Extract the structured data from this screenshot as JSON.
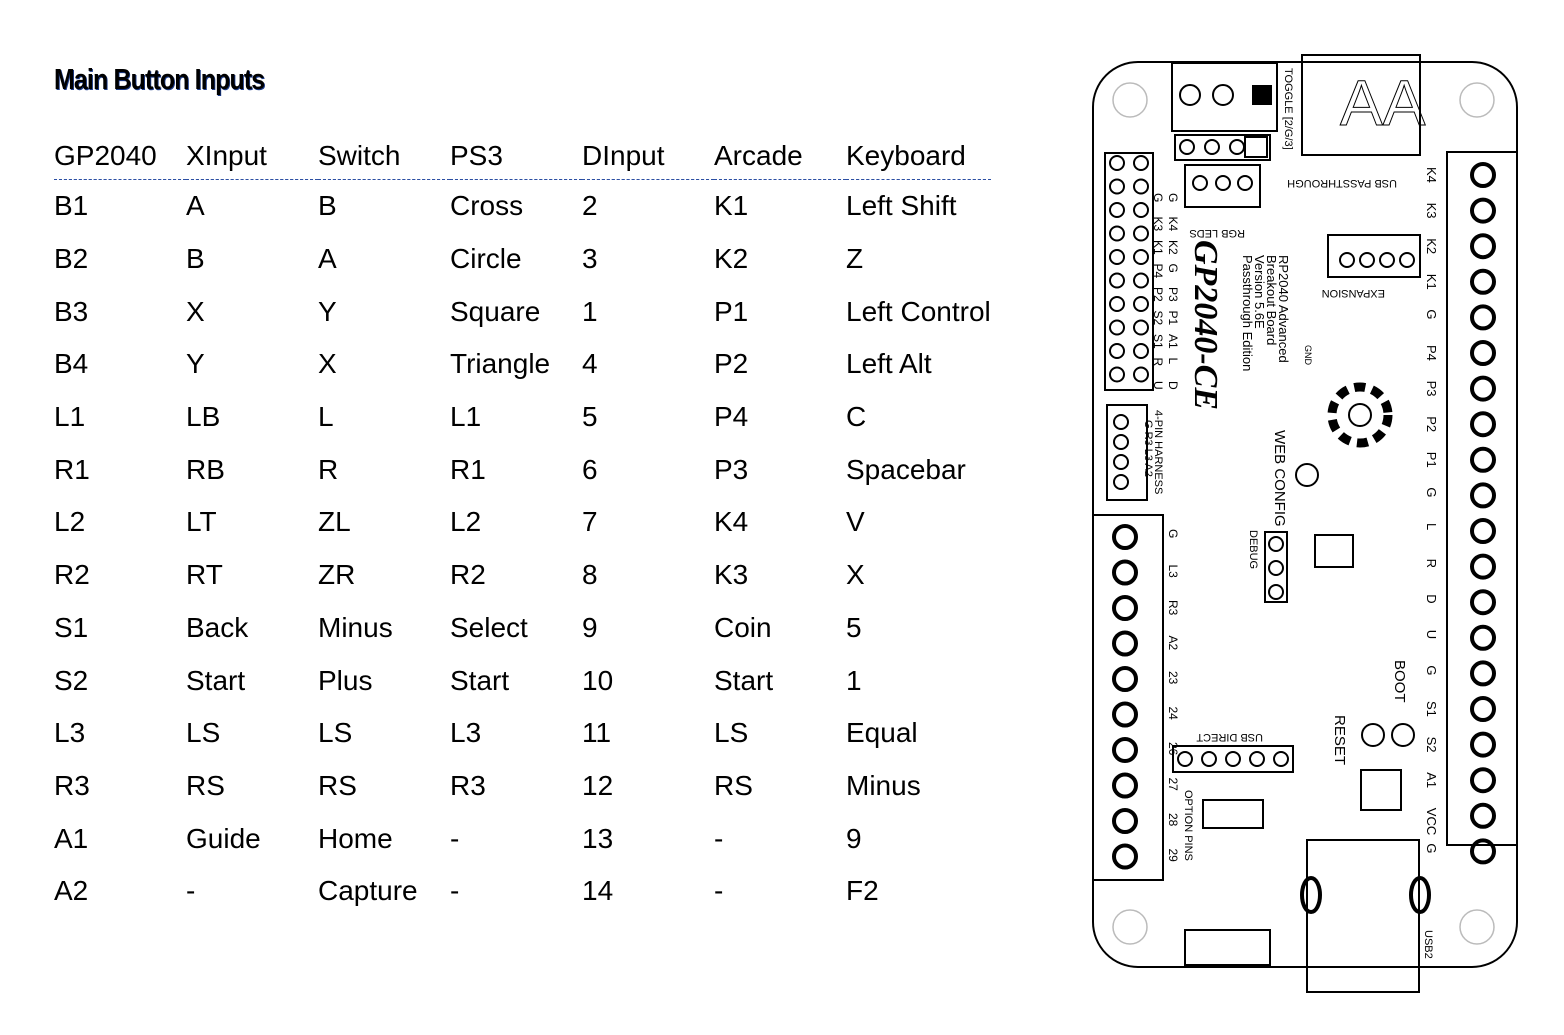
{
  "title": "Main Button Inputs",
  "table": {
    "headers": [
      "GP2040",
      "XInput",
      "Switch",
      "PS3",
      "DInput",
      "Arcade",
      "Keyboard"
    ],
    "rows": [
      [
        "B1",
        "A",
        "B",
        "Cross",
        "2",
        "K1",
        "Left Shift"
      ],
      [
        "B2",
        "B",
        "A",
        "Circle",
        "3",
        "K2",
        "Z"
      ],
      [
        "B3",
        "X",
        "Y",
        "Square",
        "1",
        "P1",
        "Left Control"
      ],
      [
        "B4",
        "Y",
        "X",
        "Triangle",
        "4",
        "P2",
        "Left Alt"
      ],
      [
        "L1",
        "LB",
        "L",
        "L1",
        "5",
        "P4",
        "C"
      ],
      [
        "R1",
        "RB",
        "R",
        "R1",
        "6",
        "P3",
        "Spacebar"
      ],
      [
        "L2",
        "LT",
        "ZL",
        "L2",
        "7",
        "K4",
        "V"
      ],
      [
        "R2",
        "RT",
        "ZR",
        "R2",
        "8",
        "K3",
        "X"
      ],
      [
        "S1",
        "Back",
        "Minus",
        "Select",
        "9",
        "Coin",
        "5"
      ],
      [
        "S2",
        "Start",
        "Plus",
        "Start",
        "10",
        "Start",
        "1"
      ],
      [
        "L3",
        "LS",
        "LS",
        "L3",
        "11",
        "LS",
        "Equal"
      ],
      [
        "R3",
        "RS",
        "RS",
        "R3",
        "12",
        "RS",
        "Minus"
      ],
      [
        "A1",
        "Guide",
        "Home",
        "-",
        "13",
        "-",
        "9"
      ],
      [
        "A2",
        "-",
        "Capture",
        "-",
        "14",
        "-",
        "F2"
      ]
    ]
  },
  "board": {
    "logo": "GP2040-CE",
    "board_name": [
      "RP2040 Advanced",
      "Breakout Board",
      "Version 5.6E",
      "Passthrough Edition"
    ],
    "right_terminal_labels": [
      "K4",
      "K3",
      "K2",
      "K1",
      "G",
      "P4",
      "P3",
      "P2",
      "P1",
      "G",
      "L",
      "R",
      "D",
      "U",
      "G",
      "S1",
      "S2",
      "A1",
      "VCC",
      "G"
    ],
    "left_terminal_labels": [
      "G",
      "L3",
      "R3",
      "A2",
      "23",
      "24",
      "26",
      "27",
      "28",
      "29"
    ],
    "header_labels_left": [
      "G",
      "K4",
      "K2",
      "G",
      "P3",
      "P1",
      "A1",
      "L",
      "D"
    ],
    "header_labels_right": [
      "G",
      "K3",
      "K1",
      "P4",
      "P2",
      "S2",
      "S1",
      "R",
      "U"
    ],
    "silkscreen": {
      "toggle": "TOGGLE [2/G/3]",
      "usb_passthrough": "USB PASSTHROUGH",
      "rgb_leds": "RGB LEDS",
      "expansion": "EXPANSION",
      "harness": "4-PIN HARNESS",
      "harness_pins": "G R3 L3 A2",
      "web_config": "WEB CONFIG",
      "debug": "DEBUG",
      "boot": "BOOT",
      "reset": "RESET",
      "usb_direct": "USB DIRECT",
      "option_pins": "OPTION PINS",
      "usb2": "USB2",
      "gnd": "GND"
    }
  }
}
